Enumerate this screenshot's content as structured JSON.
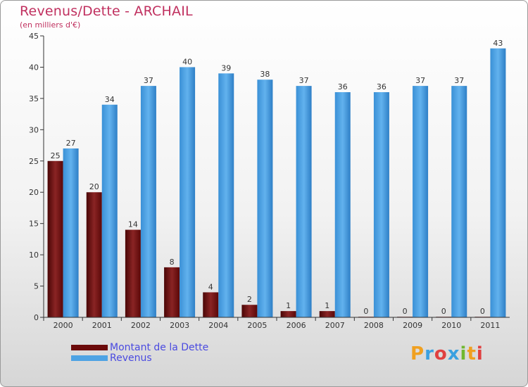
{
  "colors": {
    "dette": "#6b0a0a",
    "revenus": "#4ea3e4",
    "title": "#c0305f",
    "legend_text": "#4a4ae0"
  },
  "logo": "Proxiti",
  "chart_data": {
    "type": "bar",
    "title": "Revenus/Dette - ARCHAIL",
    "subtitle": "(en milliers d'€)",
    "xlabel": "",
    "ylabel": "",
    "ylim": [
      0,
      45
    ],
    "yticks": [
      0,
      5,
      10,
      15,
      20,
      25,
      30,
      35,
      40,
      45
    ],
    "categories": [
      "2000",
      "2001",
      "2002",
      "2003",
      "2004",
      "2005",
      "2006",
      "2007",
      "2008",
      "2009",
      "2010",
      "2011"
    ],
    "series": [
      {
        "name": "Montant de la Dette",
        "color": "#6b0a0a",
        "values": [
          25,
          20,
          14,
          8,
          4,
          2,
          1,
          1,
          0,
          0,
          0,
          0
        ]
      },
      {
        "name": "Revenus",
        "color": "#4ea3e4",
        "values": [
          27,
          34,
          37,
          40,
          39,
          38,
          37,
          36,
          36,
          37,
          37,
          43
        ]
      }
    ],
    "legend_position": "bottom-left"
  }
}
